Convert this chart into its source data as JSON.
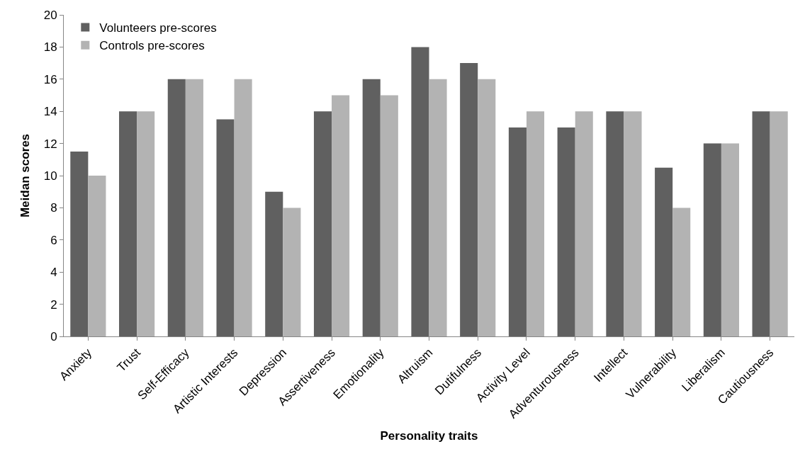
{
  "chart_data": {
    "type": "bar",
    "xlabel": "Personality traits",
    "ylabel": "Meidan scores",
    "categories": [
      "Anxiety",
      "Trust",
      "Self-Efficacy",
      "Artistic Interests",
      "Depression",
      "Assertiveness",
      "Emotionality",
      "Altruism",
      "Dutifulness",
      "Activity Level",
      "Adventurousness",
      "Intellect",
      "Vulnerability",
      "Liberalism",
      "Cautiousness"
    ],
    "series": [
      {
        "name": "Volunteers pre-scores",
        "color": "#606060",
        "values": [
          11.5,
          14,
          16,
          13.5,
          9,
          14,
          16,
          18,
          17,
          13,
          13,
          14,
          10.5,
          12,
          14
        ]
      },
      {
        "name": "Controls pre-scores",
        "color": "#b3b3b3",
        "values": [
          10,
          14,
          16,
          16,
          8,
          15,
          15,
          16,
          16,
          14,
          14,
          14,
          8,
          12,
          14
        ]
      }
    ],
    "ylim": [
      0,
      20
    ],
    "yticks": [
      0,
      2,
      4,
      6,
      8,
      10,
      12,
      14,
      16,
      18,
      20
    ],
    "grid": false,
    "legend": "top left"
  }
}
